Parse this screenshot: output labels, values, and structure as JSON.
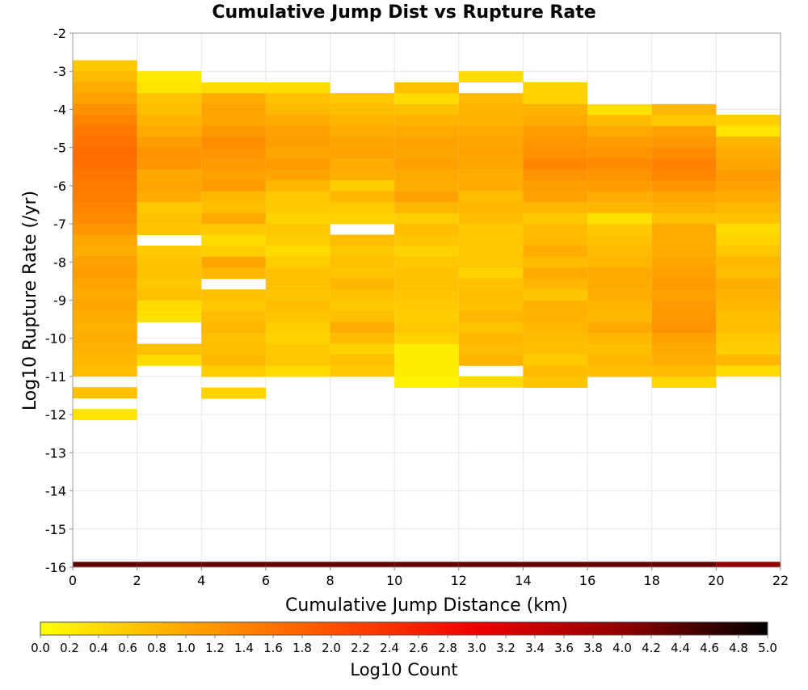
{
  "chart_data": {
    "type": "heatmap",
    "title": "Cumulative Jump Dist vs Rupture Rate",
    "xlabel": "Cumulative Jump Distance (km)",
    "ylabel": "Log10 Rupture Rate (/yr)",
    "xlim": [
      0,
      22
    ],
    "ylim": [
      -16,
      -2
    ],
    "x_ticks": [
      "0",
      "2",
      "4",
      "6",
      "8",
      "10",
      "12",
      "14",
      "16",
      "18",
      "20",
      "22"
    ],
    "y_ticks": [
      "-2",
      "-3",
      "-4",
      "-5",
      "-6",
      "-7",
      "-8",
      "-9",
      "-10",
      "-11",
      "-12",
      "-13",
      "-14",
      "-15",
      "-16"
    ],
    "x_bin_width": 2,
    "y_bin_height": 0.2857,
    "grid": true,
    "colorbar": {
      "label": "Log10 Count",
      "min": 0.0,
      "max": 5.0,
      "ticks": [
        "0.0",
        "0.2",
        "0.4",
        "0.6",
        "0.8",
        "1.0",
        "1.2",
        "1.4",
        "1.6",
        "1.8",
        "2.0",
        "2.2",
        "2.4",
        "2.6",
        "2.8",
        "3.0",
        "3.2",
        "3.4",
        "3.6",
        "3.8",
        "4.0",
        "4.2",
        "4.4",
        "4.6",
        "4.8",
        "5.0"
      ],
      "colors": [
        "#ffff00",
        "#ffa500",
        "#ff5000",
        "#ee0000",
        "#900000",
        "#000000"
      ]
    },
    "columns": [
      {
        "x_start": 0,
        "y_top": -2.71,
        "values": [
          0.62,
          0.76,
          0.9,
          1.05,
          1.22,
          1.38,
          1.52,
          1.6,
          1.66,
          1.62,
          1.56,
          1.5,
          1.46,
          1.38,
          1.3,
          1.18,
          1.0,
          0.9,
          1.05,
          1.1,
          1.0,
          0.95,
          1.0,
          0.92,
          0.88,
          0.9,
          0.85,
          0.8,
          0.72,
          null,
          0.7,
          null,
          0.3
        ]
      },
      {
        "x_start": 2,
        "y_top": -3.0,
        "values": [
          0.22,
          0.3,
          0.65,
          0.72,
          0.86,
          0.95,
          1.08,
          1.22,
          1.18,
          0.96,
          1.0,
          0.92,
          0.6,
          0.68,
          0.66,
          null,
          0.6,
          0.65,
          0.68,
          0.62,
          0.7,
          0.4,
          0.35,
          null,
          null,
          0.7,
          0.4
        ]
      },
      {
        "x_start": 4,
        "y_top": -3.29,
        "values": [
          0.4,
          0.92,
          1.02,
          1.0,
          1.15,
          1.28,
          1.2,
          1.12,
          1.05,
          1.1,
          0.78,
          0.7,
          0.95,
          0.6,
          0.4,
          0.52,
          1.0,
          0.8,
          null,
          0.7,
          0.62,
          0.75,
          0.8,
          0.7,
          0.72,
          0.78,
          0.55,
          null,
          0.5
        ]
      },
      {
        "x_start": 6,
        "y_top": -3.29,
        "values": [
          0.4,
          0.7,
          0.78,
          0.92,
          1.05,
          1.08,
          1.0,
          1.1,
          1.0,
          0.8,
          0.6,
          0.58,
          0.5,
          0.62,
          0.55,
          0.4,
          0.55,
          0.7,
          0.7,
          0.65,
          0.72,
          0.66,
          0.55,
          0.5,
          0.6,
          0.62,
          0.4
        ]
      },
      {
        "x_start": 8,
        "y_top": -3.57,
        "values": [
          0.6,
          0.72,
          0.82,
          0.9,
          1.0,
          1.02,
          0.92,
          0.9,
          0.55,
          0.8,
          0.58,
          0.5,
          null,
          0.72,
          0.62,
          0.7,
          0.65,
          0.8,
          0.7,
          0.6,
          0.7,
          0.9,
          0.75,
          0.5,
          0.7,
          0.6
        ]
      },
      {
        "x_start": 10,
        "y_top": -3.29,
        "values": [
          0.7,
          0.4,
          0.7,
          0.85,
          0.95,
          1.02,
          1.0,
          1.05,
          0.95,
          0.9,
          1.05,
          0.8,
          0.55,
          0.72,
          0.65,
          0.5,
          0.62,
          0.68,
          0.7,
          0.65,
          0.6,
          0.55,
          0.62,
          0.5,
          0.2,
          0.2,
          0.2,
          0.15
        ]
      },
      {
        "x_start": 12,
        "y_top": -3.0,
        "values": [
          0.4,
          null,
          0.75,
          0.82,
          0.85,
          0.95,
          1.0,
          1.02,
          0.98,
          0.9,
          0.92,
          0.72,
          0.8,
          0.72,
          0.6,
          0.62,
          0.6,
          0.62,
          0.5,
          0.68,
          0.72,
          0.7,
          0.8,
          0.66,
          0.8,
          0.75,
          0.82,
          null,
          0.4
        ]
      },
      {
        "x_start": 14,
        "y_top": -3.29,
        "values": [
          0.5,
          0.5,
          0.85,
          0.92,
          1.1,
          1.18,
          1.25,
          1.35,
          1.2,
          1.08,
          1.05,
          0.8,
          0.62,
          0.75,
          0.78,
          0.9,
          0.75,
          0.95,
          0.8,
          0.65,
          0.85,
          0.85,
          0.8,
          0.75,
          0.72,
          0.58,
          0.75,
          0.65
        ]
      },
      {
        "x_start": 16,
        "y_top": -3.86,
        "values": [
          0.35,
          0.75,
          0.95,
          1.1,
          1.2,
          1.3,
          1.2,
          1.1,
          0.9,
          0.8,
          0.35,
          0.6,
          0.7,
          0.75,
          0.8,
          0.95,
          0.92,
          0.9,
          0.82,
          0.8,
          0.95,
          0.8,
          0.7,
          0.8,
          0.72
        ]
      },
      {
        "x_start": 18,
        "y_top": -3.86,
        "values": [
          0.8,
          0.6,
          1.05,
          1.15,
          1.3,
          1.4,
          1.35,
          1.2,
          0.98,
          0.88,
          0.7,
          0.95,
          0.9,
          0.92,
          1.0,
          1.05,
          1.1,
          1.05,
          1.12,
          1.15,
          1.2,
          1.05,
          0.95,
          0.9,
          0.75,
          0.45
        ]
      },
      {
        "x_start": 20,
        "y_top": -4.14,
        "values": [
          0.55,
          0.3,
          0.82,
          0.92,
          1.0,
          1.1,
          1.05,
          0.95,
          0.8,
          0.7,
          0.4,
          0.5,
          0.62,
          0.8,
          0.72,
          0.9,
          0.85,
          0.8,
          0.7,
          0.72,
          0.6,
          0.55,
          0.8,
          0.4
        ]
      }
    ],
    "bottom_row": {
      "y_bottom": -16.0,
      "y_top": -15.86,
      "values": [
        4.35,
        4.3,
        4.3,
        4.3,
        4.3,
        4.3,
        4.3,
        4.3,
        4.3,
        4.3,
        4.0
      ]
    }
  }
}
